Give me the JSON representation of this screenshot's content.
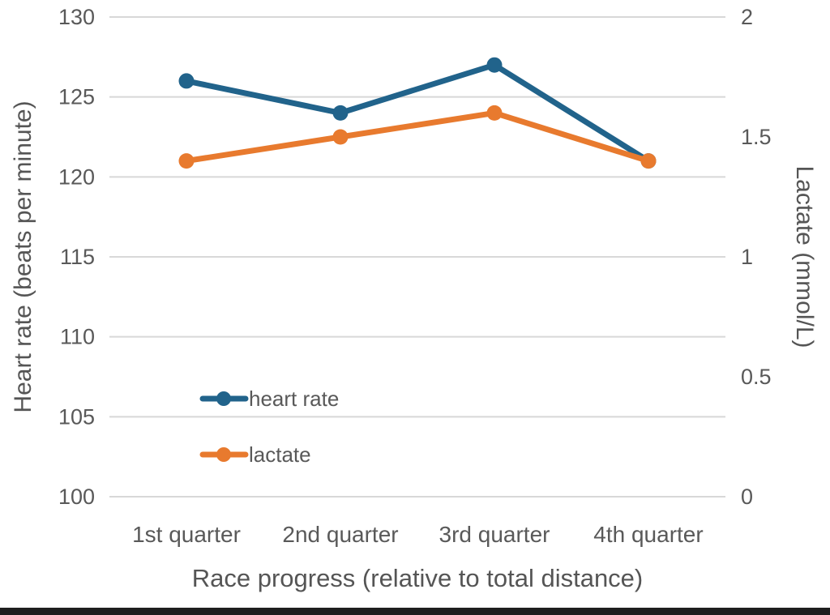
{
  "page": {
    "background_color": "#ffffff",
    "bottom_bar_color": "#1e1e1e"
  },
  "chart_data": {
    "type": "line",
    "title": "",
    "categories": [
      "1st quarter",
      "2nd quarter",
      "3rd quarter",
      "4th quarter"
    ],
    "series": [
      {
        "name": "heart rate",
        "axis": "left",
        "values": [
          126,
          124,
          127,
          121
        ],
        "color": "#21638B"
      },
      {
        "name": "lactate",
        "axis": "right",
        "values": [
          1.4,
          1.5,
          1.6,
          1.4
        ],
        "color": "#E87A2E"
      }
    ],
    "left_axis": {
      "label": "Heart rate (beats per minute)",
      "min": 100,
      "max": 130,
      "ticks": [
        130,
        125,
        120,
        115,
        110,
        105,
        100
      ]
    },
    "right_axis": {
      "label": "Lactate (mmol/L)",
      "min": 0,
      "max": 2,
      "ticks": [
        2,
        1.5,
        1,
        0.5,
        0
      ]
    },
    "x_axis": {
      "label": "Race progress (relative to total distance)"
    },
    "legend": {
      "entries": [
        "heart rate",
        "lactate"
      ],
      "position": "inside-bottom-left"
    },
    "grid": true,
    "gridline_color": "#D8D8D8",
    "text_color": "#595959",
    "marker_style": "circle",
    "ylim_left": [
      100,
      130
    ],
    "ylim_right": [
      0,
      2
    ]
  }
}
